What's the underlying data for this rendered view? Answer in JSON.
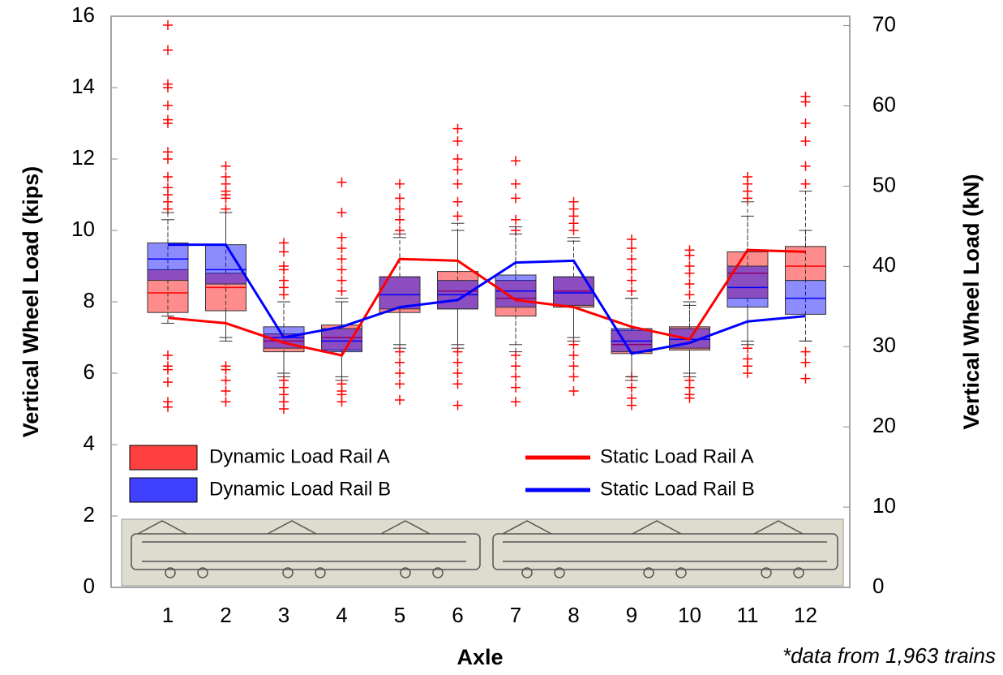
{
  "chart_data": {
    "type": "box",
    "x_label": "Axle",
    "y_label": "Vertical Wheel Load (kips)",
    "y2_label": "Vertical Wheel Load (kN)",
    "note": "*data from 1,963 trains",
    "categories": [
      "1",
      "2",
      "3",
      "4",
      "5",
      "6",
      "7",
      "8",
      "9",
      "10",
      "11",
      "12"
    ],
    "ylim": [
      0,
      16
    ],
    "yticks": [
      0,
      2,
      4,
      6,
      8,
      10,
      12,
      14,
      16
    ],
    "y2lim": [
      0,
      71.17
    ],
    "y2ticks": [
      0,
      10,
      20,
      30,
      40,
      50,
      60,
      70
    ],
    "series": [
      {
        "name": "Dynamic Load Rail A",
        "color": "#ff0000",
        "type": "box",
        "boxes": [
          {
            "low": 7.4,
            "q1": 7.7,
            "median": 8.25,
            "q3": 8.9,
            "high": 10.3,
            "outliers": [
              5.05,
              5.2,
              5.75,
              6.1,
              6.2,
              6.5,
              10.6,
              10.8,
              11.0,
              11.2,
              11.5,
              12.0,
              12.2,
              13.0,
              13.1,
              13.5,
              14.0,
              14.1,
              15.05,
              15.75
            ]
          },
          {
            "low": 6.9,
            "q1": 7.75,
            "median": 8.4,
            "q3": 8.8,
            "high": 10.5,
            "outliers": [
              5.2,
              5.5,
              5.8,
              6.1,
              6.2,
              10.6,
              10.9,
              11.0,
              11.1,
              11.3,
              11.5,
              11.8
            ]
          },
          {
            "low": 5.9,
            "q1": 6.6,
            "median": 6.9,
            "q3": 7.1,
            "high": 8.0,
            "outliers": [
              5.0,
              5.2,
              5.4,
              5.6,
              5.8,
              8.2,
              8.4,
              8.6,
              8.9,
              9.0,
              9.4,
              9.65
            ]
          },
          {
            "low": 5.8,
            "q1": 6.65,
            "median": 7.0,
            "q3": 7.35,
            "high": 8.1,
            "outliers": [
              5.2,
              5.4,
              5.5,
              5.7,
              8.3,
              8.6,
              8.9,
              9.2,
              9.5,
              9.8,
              10.5,
              11.35
            ]
          },
          {
            "low": 6.7,
            "q1": 7.7,
            "median": 8.2,
            "q3": 8.7,
            "high": 9.9,
            "outliers": [
              5.25,
              5.7,
              6.0,
              6.3,
              6.6,
              10.0,
              10.3,
              10.6,
              10.9,
              11.3
            ]
          },
          {
            "low": 6.7,
            "q1": 7.8,
            "median": 8.3,
            "q3": 8.85,
            "high": 10.2,
            "outliers": [
              5.1,
              5.7,
              6.0,
              6.3,
              6.6,
              10.4,
              10.8,
              11.3,
              11.7,
              12.0,
              12.5,
              12.85
            ]
          },
          {
            "low": 6.6,
            "q1": 7.6,
            "median": 8.1,
            "q3": 8.6,
            "high": 9.9,
            "outliers": [
              5.2,
              5.6,
              5.9,
              6.2,
              6.5,
              10.0,
              10.3,
              10.9,
              11.3,
              11.95
            ]
          },
          {
            "low": 6.9,
            "q1": 7.85,
            "median": 8.3,
            "q3": 8.7,
            "high": 9.8,
            "outliers": [
              5.5,
              5.9,
              6.2,
              6.5,
              6.8,
              10.0,
              10.2,
              10.4,
              10.6,
              10.8
            ]
          },
          {
            "low": 5.8,
            "q1": 6.55,
            "median": 6.8,
            "q3": 7.2,
            "high": 8.1,
            "outliers": [
              5.1,
              5.3,
              5.6,
              5.9,
              8.3,
              8.6,
              8.9,
              9.2,
              9.5,
              9.75
            ]
          },
          {
            "low": 5.9,
            "q1": 6.65,
            "median": 6.95,
            "q3": 7.3,
            "high": 8.0,
            "outliers": [
              5.3,
              5.4,
              5.6,
              5.8,
              8.2,
              8.5,
              8.8,
              9.0,
              9.3,
              9.45
            ]
          },
          {
            "low": 6.9,
            "q1": 8.1,
            "median": 8.8,
            "q3": 9.4,
            "high": 10.8,
            "outliers": [
              6.0,
              6.2,
              6.4,
              6.7,
              10.9,
              11.1,
              11.3,
              11.5
            ]
          },
          {
            "low": 6.9,
            "q1": 8.6,
            "median": 9.0,
            "q3": 9.55,
            "high": 11.1,
            "outliers": [
              5.85,
              6.3,
              6.6,
              11.3,
              11.8,
              12.5,
              13.0,
              13.6,
              13.75
            ]
          }
        ]
      },
      {
        "name": "Dynamic Load Rail B",
        "color": "#0000ff",
        "type": "box",
        "boxes": [
          {
            "low": 7.6,
            "q1": 8.6,
            "median": 9.2,
            "q3": 9.65,
            "high": 10.5
          },
          {
            "low": 7.0,
            "q1": 8.5,
            "median": 8.9,
            "q3": 9.6,
            "high": 10.5
          },
          {
            "low": 6.0,
            "q1": 6.7,
            "median": 7.0,
            "q3": 7.3,
            "high": 8.0
          },
          {
            "low": 5.9,
            "q1": 6.6,
            "median": 6.9,
            "q3": 7.25,
            "high": 8.0
          },
          {
            "low": 6.8,
            "q1": 7.8,
            "median": 8.2,
            "q3": 8.7,
            "high": 9.8
          },
          {
            "low": 6.8,
            "q1": 7.8,
            "median": 8.2,
            "q3": 8.6,
            "high": 10.0
          },
          {
            "low": 6.8,
            "q1": 7.85,
            "median": 8.3,
            "q3": 8.75,
            "high": 10.1
          },
          {
            "low": 7.0,
            "q1": 7.9,
            "median": 8.25,
            "q3": 8.7,
            "high": 9.7
          },
          {
            "low": 5.9,
            "q1": 6.6,
            "median": 6.9,
            "q3": 7.25,
            "high": 8.1
          },
          {
            "low": 6.0,
            "q1": 6.7,
            "median": 6.95,
            "q3": 7.25,
            "high": 7.9
          },
          {
            "low": 6.8,
            "q1": 7.85,
            "median": 8.4,
            "q3": 9.0,
            "high": 10.4
          },
          {
            "low": 6.9,
            "q1": 7.65,
            "median": 8.1,
            "q3": 8.6,
            "high": 10.0
          }
        ]
      },
      {
        "name": "Static Load Rail A",
        "color": "#ff0000",
        "type": "line",
        "values": [
          7.55,
          7.4,
          6.85,
          6.5,
          9.2,
          9.15,
          8.05,
          7.85,
          7.3,
          6.95,
          9.45,
          9.4
        ]
      },
      {
        "name": "Static Load Rail B",
        "color": "#0000ff",
        "type": "line",
        "values": [
          9.6,
          9.6,
          7.0,
          7.3,
          7.85,
          8.05,
          9.1,
          9.15,
          6.55,
          6.85,
          7.45,
          7.6
        ]
      }
    ]
  }
}
